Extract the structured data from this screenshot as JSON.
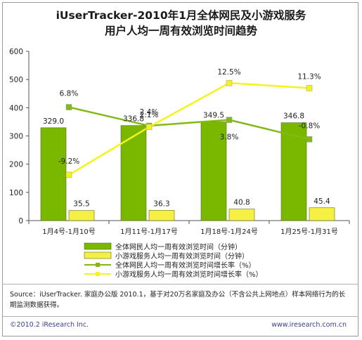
{
  "title_line1": "iUserTracker-2010年1月全体网民及小游戏服务",
  "title_line2": "用户人均一周有效浏览时间趋势",
  "source": "Source：iUserTracker. 家庭办公版 2010.1，基于对20万名家庭及办公（不含公共上网地点）样本网络行为的长期监测数据获得。",
  "copyright": "©2010.2 iResearch Inc.",
  "website": "www.iresearch.com.cn",
  "colors": {
    "bar_all": "#7ab800",
    "bar_game": "#f6f045",
    "line_all": "#84b818",
    "line_game": "#f4f41a"
  },
  "chart_data": {
    "type": "bar",
    "categories": [
      "1月4号-1月10号",
      "1月11号-1月17号",
      "1月18号-1月24号",
      "1月25号-1月31号"
    ],
    "ylim": [
      0,
      600
    ],
    "yticks": [
      0,
      100,
      200,
      300,
      400,
      500,
      600
    ],
    "grid": false,
    "legend_position": "bottom",
    "series": [
      {
        "name": "全体网民人均一周有效浏览时间（分钟）",
        "type": "bar",
        "values": [
          329.0,
          336.8,
          349.5,
          346.8
        ],
        "labels": [
          "329.0",
          "336.8",
          "349.5",
          "346.8"
        ]
      },
      {
        "name": "小游戏服务人均一周有效浏览时间（分钟）",
        "type": "bar",
        "values": [
          35.5,
          36.3,
          40.8,
          45.4
        ],
        "labels": [
          "35.5",
          "36.3",
          "40.8",
          "45.4"
        ]
      },
      {
        "name": "全体网民人均一周有效浏览时间增长率（%）",
        "type": "line",
        "values": [
          6.8,
          2.4,
          3.8,
          -0.8
        ],
        "labels": [
          "6.8%",
          "2.4%",
          "3.8%",
          "-0.8%"
        ]
      },
      {
        "name": "小游戏服务人均一周有效浏览时间增长率（%）",
        "type": "line",
        "values": [
          -9.2,
          2.1,
          12.5,
          11.3
        ],
        "labels": [
          "-9.2%",
          "2.1%",
          "12.5%",
          "11.3%"
        ]
      }
    ]
  }
}
